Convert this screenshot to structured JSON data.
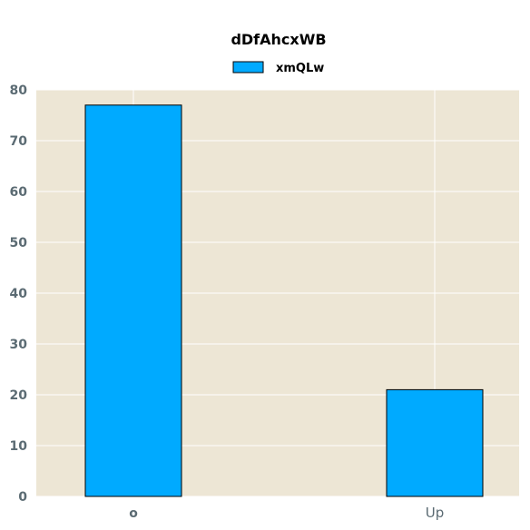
{
  "chart_data": {
    "type": "bar",
    "title": "dDfAhcxWB",
    "xlabel": "",
    "ylabel": "",
    "categories": [
      "o",
      "Up"
    ],
    "series": [
      {
        "name": "xmQLw",
        "values": [
          77,
          21
        ],
        "color": "#00aaff"
      }
    ],
    "ylim": [
      0,
      80
    ],
    "yticks": [
      0,
      10,
      20,
      30,
      40,
      50,
      60,
      70,
      80
    ],
    "grid": true,
    "legend_position": "top-center",
    "background_color": "#ede6d5",
    "gridline_color": "#ffffff"
  }
}
